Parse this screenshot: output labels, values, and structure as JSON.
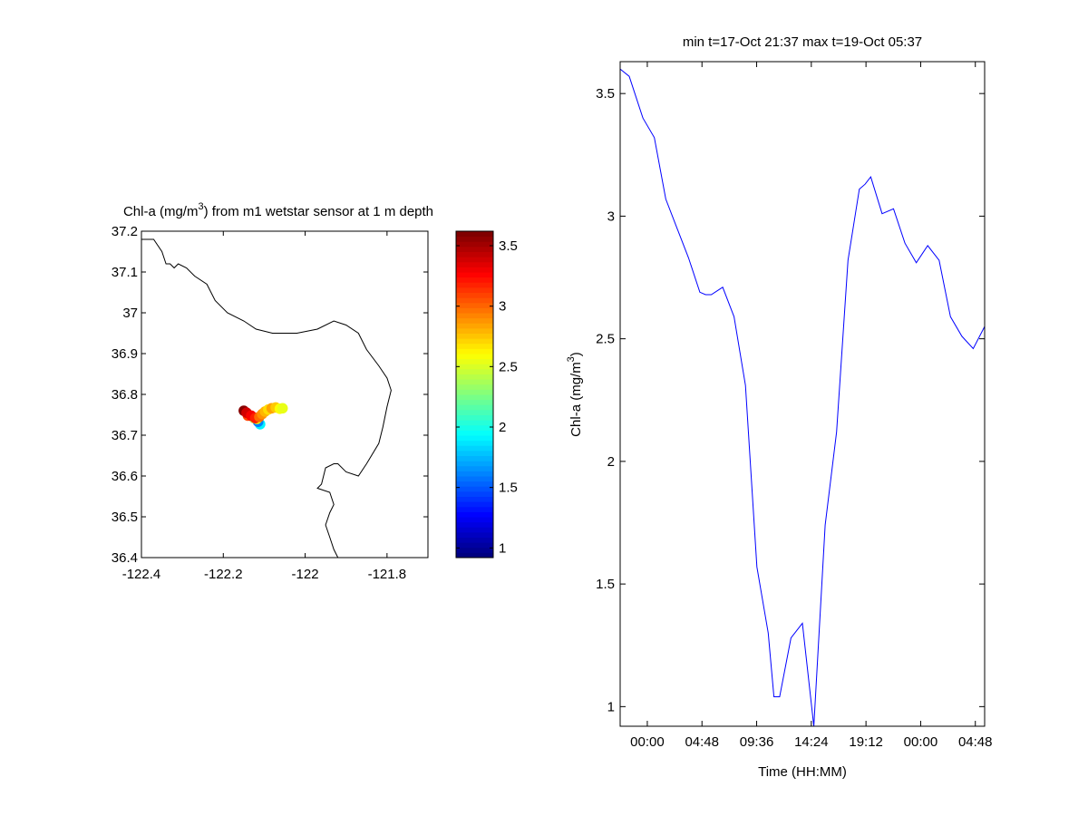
{
  "chart_data": [
    {
      "type": "scatter",
      "title": "Chl-a (mg/m3) from m1 wetstar sensor at 1 m depth",
      "title_parts": {
        "prefix": "Chl-a (mg/m",
        "superscript": "3",
        "suffix": ") from m1 wetstar sensor at 1 m depth"
      },
      "xlim": [
        -122.4,
        -121.7
      ],
      "ylim": [
        36.4,
        37.2
      ],
      "xticks": [
        -122.4,
        -122.2,
        -122,
        -121.8
      ],
      "xtick_labels": [
        "-122.4",
        "-122.2",
        "-122",
        "-121.8"
      ],
      "yticks": [
        36.4,
        36.5,
        36.6,
        36.7,
        36.8,
        36.9,
        37,
        37.1,
        37.2
      ],
      "ytick_labels": [
        "36.4",
        "36.5",
        "36.6",
        "36.7",
        "36.8",
        "36.9",
        "37",
        "37.1",
        "37.2"
      ],
      "colormap": "jet",
      "color_range": [
        0.92,
        3.62
      ],
      "colorbar_ticks": [
        1,
        1.5,
        2,
        2.5,
        3,
        3.5
      ],
      "colorbar_tick_labels": [
        "1",
        "1.5",
        "2",
        "2.5",
        "3",
        "3.5"
      ],
      "line_color": "#000000",
      "coastline": [
        [
          -122.4,
          37.18
        ],
        [
          -122.37,
          37.18
        ],
        [
          -122.35,
          37.15
        ],
        [
          -122.34,
          37.12
        ],
        [
          -122.33,
          37.12
        ],
        [
          -122.32,
          37.11
        ],
        [
          -122.31,
          37.12
        ],
        [
          -122.29,
          37.11
        ],
        [
          -122.27,
          37.09
        ],
        [
          -122.24,
          37.07
        ],
        [
          -122.22,
          37.03
        ],
        [
          -122.19,
          37.0
        ],
        [
          -122.15,
          36.98
        ],
        [
          -122.12,
          36.96
        ],
        [
          -122.08,
          36.95
        ],
        [
          -122.02,
          36.95
        ],
        [
          -121.97,
          36.96
        ],
        [
          -121.93,
          36.98
        ],
        [
          -121.9,
          36.97
        ],
        [
          -121.87,
          36.95
        ],
        [
          -121.85,
          36.91
        ],
        [
          -121.82,
          36.87
        ],
        [
          -121.8,
          36.84
        ],
        [
          -121.79,
          36.81
        ],
        [
          -121.8,
          36.77
        ],
        [
          -121.81,
          36.72
        ],
        [
          -121.82,
          36.68
        ],
        [
          -121.85,
          36.63
        ],
        [
          -121.87,
          36.6
        ],
        [
          -121.9,
          36.61
        ],
        [
          -121.92,
          36.63
        ],
        [
          -121.93,
          36.63
        ],
        [
          -121.95,
          36.62
        ],
        [
          -121.96,
          36.58
        ],
        [
          -121.97,
          36.57
        ],
        [
          -121.94,
          36.56
        ],
        [
          -121.93,
          36.53
        ],
        [
          -121.94,
          36.51
        ],
        [
          -121.95,
          36.48
        ],
        [
          -121.94,
          36.45
        ],
        [
          -121.93,
          36.42
        ],
        [
          -121.92,
          36.4
        ]
      ],
      "points": [
        {
          "lon": -122.11,
          "lat": 36.727,
          "value": 1.9
        },
        {
          "lon": -122.115,
          "lat": 36.733,
          "value": 1.6
        },
        {
          "lon": -122.125,
          "lat": 36.742,
          "value": 2.4
        },
        {
          "lon": -122.118,
          "lat": 36.74,
          "value": 2.6
        },
        {
          "lon": -122.14,
          "lat": 36.748,
          "value": 3.1
        },
        {
          "lon": -122.15,
          "lat": 36.76,
          "value": 3.6
        },
        {
          "lon": -122.143,
          "lat": 36.755,
          "value": 3.4
        },
        {
          "lon": -122.132,
          "lat": 36.748,
          "value": 3.3
        },
        {
          "lon": -122.122,
          "lat": 36.742,
          "value": 3.2
        },
        {
          "lon": -122.112,
          "lat": 36.745,
          "value": 3.0
        },
        {
          "lon": -122.105,
          "lat": 36.752,
          "value": 2.9
        },
        {
          "lon": -122.098,
          "lat": 36.758,
          "value": 2.8
        },
        {
          "lon": -122.09,
          "lat": 36.763,
          "value": 2.7
        },
        {
          "lon": -122.082,
          "lat": 36.766,
          "value": 2.85
        },
        {
          "lon": -122.072,
          "lat": 36.768,
          "value": 2.75
        },
        {
          "lon": -122.062,
          "lat": 36.765,
          "value": 2.6
        },
        {
          "lon": -122.055,
          "lat": 36.766,
          "value": 2.55
        }
      ]
    },
    {
      "type": "line",
      "title": "min t=17-Oct 21:37 max t=19-Oct 05:37",
      "xlabel": "Time (HH:MM)",
      "ylabel": "Chl-a (mg/m3)",
      "ylabel_parts": {
        "prefix": "Chl-a (mg/m",
        "superscript": "3",
        "suffix": ")"
      },
      "x_unit": "hours since 17-Oct 21:37",
      "xlim": [
        0,
        32
      ],
      "ylim": [
        0.92,
        3.63
      ],
      "xticks": [
        2.383,
        7.183,
        11.983,
        16.783,
        21.583,
        26.383,
        31.183
      ],
      "xtick_labels": [
        "00:00",
        "04:48",
        "09:36",
        "14:24",
        "19:12",
        "00:00",
        "04:48"
      ],
      "yticks": [
        1,
        1.5,
        2,
        2.5,
        3,
        3.5
      ],
      "ytick_labels": [
        "1",
        "1.5",
        "2",
        "2.5",
        "3",
        "3.5"
      ],
      "line_color": "#0000ff",
      "x": [
        0,
        0.8,
        2,
        3,
        4,
        5,
        6,
        7,
        7.5,
        8,
        9,
        10,
        11,
        12,
        13,
        13.5,
        14,
        15,
        16,
        17,
        18,
        19,
        20,
        21,
        21.5,
        22,
        23,
        24,
        25,
        26,
        27,
        28,
        29,
        30,
        31,
        32
      ],
      "y": [
        3.6,
        3.57,
        3.4,
        3.32,
        3.07,
        2.95,
        2.83,
        2.69,
        2.68,
        2.68,
        2.71,
        2.59,
        2.31,
        1.57,
        1.3,
        1.04,
        1.04,
        1.28,
        1.34,
        0.92,
        1.74,
        2.12,
        2.82,
        3.11,
        3.13,
        3.16,
        3.01,
        3.03,
        2.89,
        2.81,
        2.88,
        2.82,
        2.59,
        2.51,
        2.46,
        2.55
      ]
    }
  ]
}
